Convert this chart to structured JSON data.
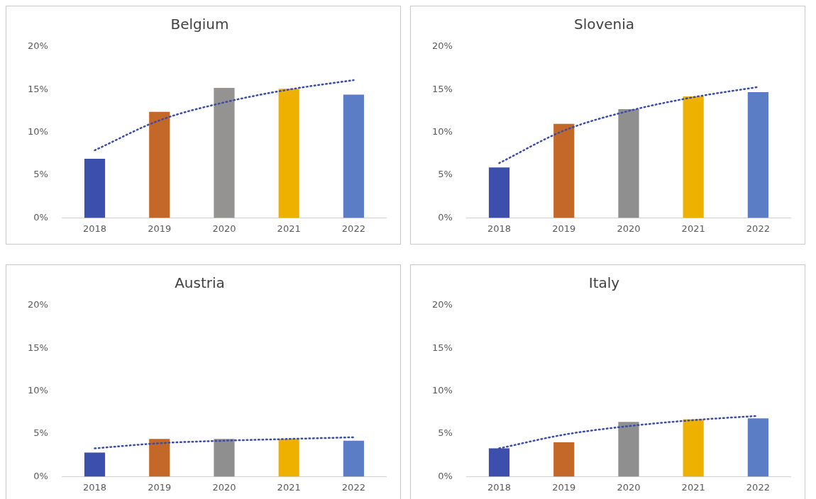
{
  "chart_data": [
    {
      "type": "bar",
      "title": "Belgium",
      "categories": [
        "2018",
        "2019",
        "2020",
        "2021",
        "2022"
      ],
      "ylim": [
        0,
        20
      ],
      "yticks": [
        {
          "value": 0,
          "label": "0%"
        },
        {
          "value": 5,
          "label": "5%"
        },
        {
          "value": 10,
          "label": "10%"
        },
        {
          "value": 15,
          "label": "15%"
        },
        {
          "value": 20,
          "label": "20%"
        }
      ],
      "grid": false,
      "legend": false,
      "series": [
        {
          "colors": [
            "#3c4fad",
            "#c4682a",
            "#959391",
            "#efb100",
            "#5a7dc6"
          ],
          "values": [
            6.9,
            12.4,
            15.2,
            15.1,
            14.4
          ]
        },
        {
          "type": "line",
          "color": "#3a4aa8",
          "line_style": "dotted",
          "marker": "none",
          "values": [
            7.9,
            11.4,
            13.5,
            15.0,
            16.1
          ]
        }
      ]
    },
    {
      "type": "bar",
      "title": "Slovenia",
      "categories": [
        "2018",
        "2019",
        "2020",
        "2021",
        "2022"
      ],
      "ylim": [
        0,
        20
      ],
      "yticks": [
        {
          "value": 0,
          "label": "0%"
        },
        {
          "value": 5,
          "label": "5%"
        },
        {
          "value": 10,
          "label": "10%"
        },
        {
          "value": 15,
          "label": "15%"
        },
        {
          "value": 20,
          "label": "20%"
        }
      ],
      "grid": false,
      "legend": false,
      "series": [
        {
          "colors": [
            "#3c4fad",
            "#c4682a",
            "#8f8f8f",
            "#efb100",
            "#5a7dc6"
          ],
          "values": [
            5.9,
            11.0,
            12.7,
            14.2,
            14.7
          ]
        },
        {
          "type": "line",
          "color": "#3a4aa8",
          "line_style": "dotted",
          "marker": "none",
          "values": [
            6.4,
            10.2,
            12.5,
            14.1,
            15.3
          ]
        }
      ]
    },
    {
      "type": "bar",
      "title": "Austria",
      "categories": [
        "2018",
        "2019",
        "2020",
        "2021",
        "2022"
      ],
      "ylim": [
        0,
        20
      ],
      "yticks": [
        {
          "value": 0,
          "label": "0%"
        },
        {
          "value": 5,
          "label": "5%"
        },
        {
          "value": 10,
          "label": "10%"
        },
        {
          "value": 15,
          "label": "15%"
        },
        {
          "value": 20,
          "label": "20%"
        }
      ],
      "grid": false,
      "legend": false,
      "series": [
        {
          "colors": [
            "#3c4fad",
            "#c4682a",
            "#8f8f8f",
            "#efb100",
            "#5a7dc6"
          ],
          "values": [
            2.8,
            4.4,
            4.4,
            4.4,
            4.2
          ]
        },
        {
          "type": "line",
          "color": "#3a4aa8",
          "line_style": "dotted",
          "marker": "none",
          "values": [
            3.3,
            3.9,
            4.2,
            4.4,
            4.6
          ]
        }
      ]
    },
    {
      "type": "bar",
      "title": "Italy",
      "categories": [
        "2018",
        "2019",
        "2020",
        "2021",
        "2022"
      ],
      "ylim": [
        0,
        20
      ],
      "yticks": [
        {
          "value": 0,
          "label": "0%"
        },
        {
          "value": 5,
          "label": "5%"
        },
        {
          "value": 10,
          "label": "10%"
        },
        {
          "value": 15,
          "label": "15%"
        },
        {
          "value": 20,
          "label": "20%"
        }
      ],
      "grid": false,
      "legend": false,
      "series": [
        {
          "colors": [
            "#3c4fad",
            "#c4682a",
            "#8f8f8f",
            "#efb100",
            "#5a7dc6"
          ],
          "values": [
            3.3,
            4.0,
            6.4,
            6.7,
            6.8
          ]
        },
        {
          "type": "line",
          "color": "#3a4aa8",
          "line_style": "dotted",
          "marker": "none",
          "values": [
            3.3,
            4.9,
            5.9,
            6.6,
            7.1
          ]
        }
      ]
    }
  ]
}
